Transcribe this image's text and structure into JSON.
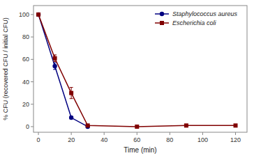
{
  "chart_data": {
    "type": "line",
    "title": "",
    "xlabel": "Time (min)",
    "ylabel": "% CFU (recovered CFU / initial CFU)",
    "xlim": [
      -3,
      127
    ],
    "ylim": [
      -5,
      108
    ],
    "xticks": [
      0,
      20,
      40,
      60,
      80,
      100,
      120
    ],
    "yticks": [
      0,
      20,
      40,
      60,
      80,
      100
    ],
    "grid": false,
    "legend": "upper right",
    "series": [
      {
        "name": "Staphylococcus aureus",
        "color": "#000080",
        "marker": "circle",
        "x": [
          0,
          10,
          20,
          30
        ],
        "values": [
          100,
          54,
          8,
          0
        ],
        "errors": [
          0,
          3,
          1,
          0
        ]
      },
      {
        "name": "Escherichia coli",
        "color": "#800000",
        "marker": "square",
        "x": [
          0,
          10,
          20,
          30,
          60,
          90,
          120
        ],
        "values": [
          100,
          61,
          30,
          1,
          0,
          1,
          1
        ],
        "errors": [
          0,
          3,
          5,
          0.5,
          0,
          0.5,
          0.5
        ]
      }
    ]
  }
}
